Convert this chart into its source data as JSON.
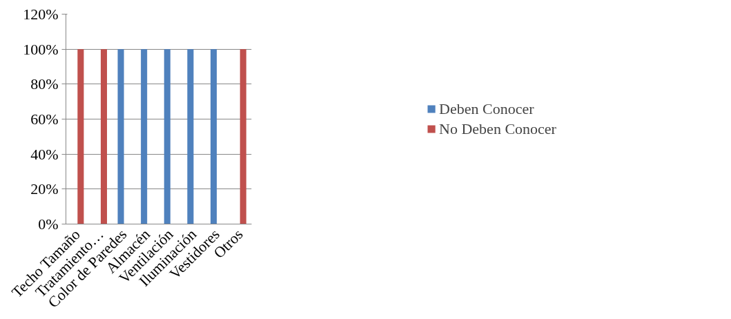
{
  "chart_data": {
    "type": "bar",
    "categories": [
      "Techo Tamaño",
      "Tratamiento…",
      "Color de Paredes",
      "Almacén",
      "Ventilación",
      "Iluminación",
      "Vestidores",
      "Otros"
    ],
    "series": [
      {
        "name": "Deben Conocer",
        "color": "#4f81bd",
        "values": [
          0,
          0,
          100,
          100,
          100,
          100,
          100,
          0
        ]
      },
      {
        "name": "No Deben Conocer",
        "color": "#c0504d",
        "values": [
          100,
          100,
          0,
          0,
          0,
          0,
          0,
          100
        ]
      }
    ],
    "ylim": [
      0,
      120
    ],
    "yticks": [
      {
        "value": 0,
        "label": "0%"
      },
      {
        "value": 20,
        "label": "20%"
      },
      {
        "value": 40,
        "label": "40%"
      },
      {
        "value": 60,
        "label": "60%"
      },
      {
        "value": 80,
        "label": "80%"
      },
      {
        "value": 100,
        "label": "100%"
      },
      {
        "value": 120,
        "label": "120%"
      }
    ],
    "grid": "y",
    "legend": "right"
  }
}
